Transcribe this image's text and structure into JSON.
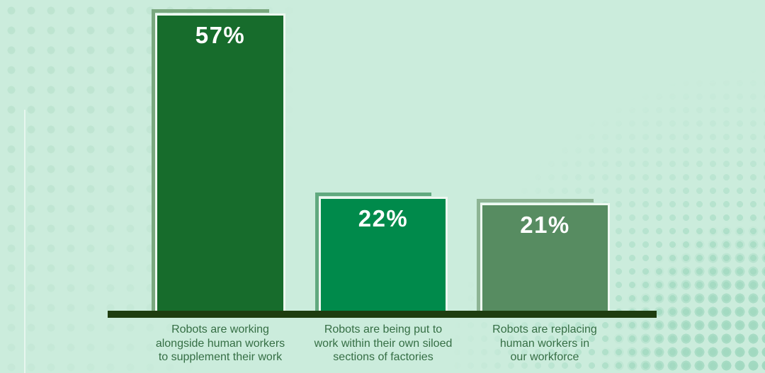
{
  "chart_data": {
    "type": "bar",
    "categories": [
      "Robots are working alongside human workers to supplement their work",
      "Robots are being put to work within their own siloed sections of factories",
      "Robots are replacing human workers in our workforce"
    ],
    "values": [
      57,
      22,
      21
    ],
    "value_labels": [
      "57%",
      "22%",
      "21%"
    ],
    "title": "",
    "xlabel": "",
    "ylabel": "",
    "ylim": [
      0,
      60
    ],
    "grid": false,
    "legend": false,
    "bar_colors": [
      "#176c2c",
      "#008a4b",
      "#578c61"
    ],
    "bar_outline_colors": [
      "#7aa87f",
      "#61a97f",
      "#8db494"
    ],
    "bar_border_color": "#eef8f1",
    "axis_color": "#1e3d10",
    "background_color": "#cbecdc",
    "dot_pattern_colors": [
      "#bce3cf",
      "#a7dcc4"
    ],
    "label_text_color": "#356e44",
    "value_text_color": "#ffffff"
  },
  "bars": [
    {
      "value_label": "57%",
      "label_lines": [
        "Robots are working",
        "alongside human workers",
        "to supplement their work"
      ]
    },
    {
      "value_label": "22%",
      "label_lines": [
        "Robots are being put to",
        "work within their own siloed",
        "sections of factories"
      ]
    },
    {
      "value_label": "21%",
      "label_lines": [
        "Robots are replacing",
        "human workers in",
        "our workforce"
      ]
    }
  ]
}
